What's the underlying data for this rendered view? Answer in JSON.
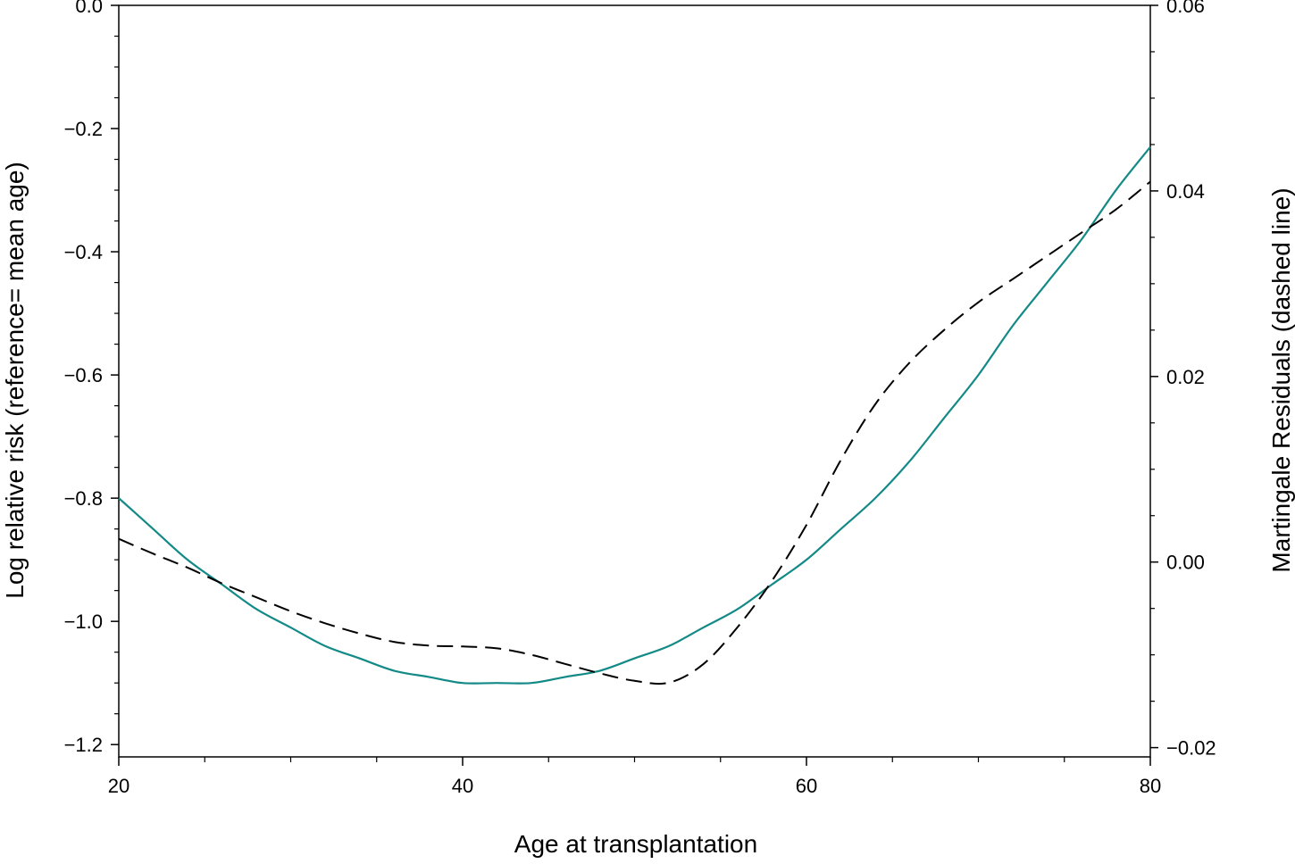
{
  "chart_data": {
    "type": "line",
    "xlabel": "Age  at  transplantation",
    "ylabel": "Log relative risk (reference= mean age)",
    "y2label": "Martingale Residuals (dashed line)",
    "xlim": [
      20,
      80
    ],
    "ylim": [
      -1.22,
      0.0
    ],
    "y2lim": [
      -0.021,
      0.06
    ],
    "x_ticks": [
      20,
      40,
      60,
      80
    ],
    "x_tick_labels": [
      "20",
      "40",
      "60",
      "80"
    ],
    "y_ticks": [
      0.0,
      -0.2,
      -0.4,
      -0.6,
      -0.8,
      -1.0,
      -1.2
    ],
    "y_tick_labels": [
      "0.0",
      "−0.2",
      "−0.4",
      "−0.6",
      "−0.8",
      "−1.0",
      "−1.2"
    ],
    "y2_ticks": [
      0.06,
      0.04,
      0.02,
      0.0,
      -0.02
    ],
    "y2_tick_labels": [
      "0.06",
      "0.04",
      "0.02",
      "0.00",
      "−0.02"
    ],
    "grid": false,
    "series": [
      {
        "axis": "left",
        "style": "solid",
        "color": "#138a87",
        "x": [
          20,
          22,
          24,
          26,
          28,
          30,
          32,
          34,
          36,
          38,
          40,
          42,
          44,
          46,
          48,
          50,
          52,
          54,
          56,
          58,
          60,
          62,
          64,
          66,
          68,
          70,
          72,
          74,
          76,
          78,
          80
        ],
        "y": [
          -0.8,
          -0.85,
          -0.9,
          -0.94,
          -0.98,
          -1.01,
          -1.04,
          -1.06,
          -1.08,
          -1.09,
          -1.1,
          -1.1,
          -1.1,
          -1.09,
          -1.08,
          -1.06,
          -1.04,
          -1.01,
          -0.98,
          -0.94,
          -0.9,
          -0.85,
          -0.8,
          -0.74,
          -0.67,
          -0.6,
          -0.52,
          -0.45,
          -0.38,
          -0.3,
          -0.23
        ]
      },
      {
        "axis": "right",
        "style": "dashed",
        "color": "#000000",
        "x": [
          20,
          22,
          24,
          26,
          28,
          30,
          32,
          34,
          36,
          38,
          40,
          42,
          44,
          46,
          48,
          50,
          52,
          54,
          56,
          58,
          60,
          62,
          64,
          66,
          68,
          70,
          72,
          74,
          76,
          78,
          80
        ],
        "y": [
          0.0025,
          0.0009,
          -0.0006,
          -0.0023,
          -0.0038,
          -0.0053,
          -0.0066,
          -0.0077,
          -0.0086,
          -0.009,
          -0.0091,
          -0.0093,
          -0.01,
          -0.011,
          -0.012,
          -0.0128,
          -0.013,
          -0.011,
          -0.007,
          -0.002,
          0.004,
          0.011,
          0.017,
          0.0215,
          0.025,
          0.028,
          0.0305,
          0.033,
          0.0355,
          0.038,
          0.041
        ]
      }
    ]
  }
}
